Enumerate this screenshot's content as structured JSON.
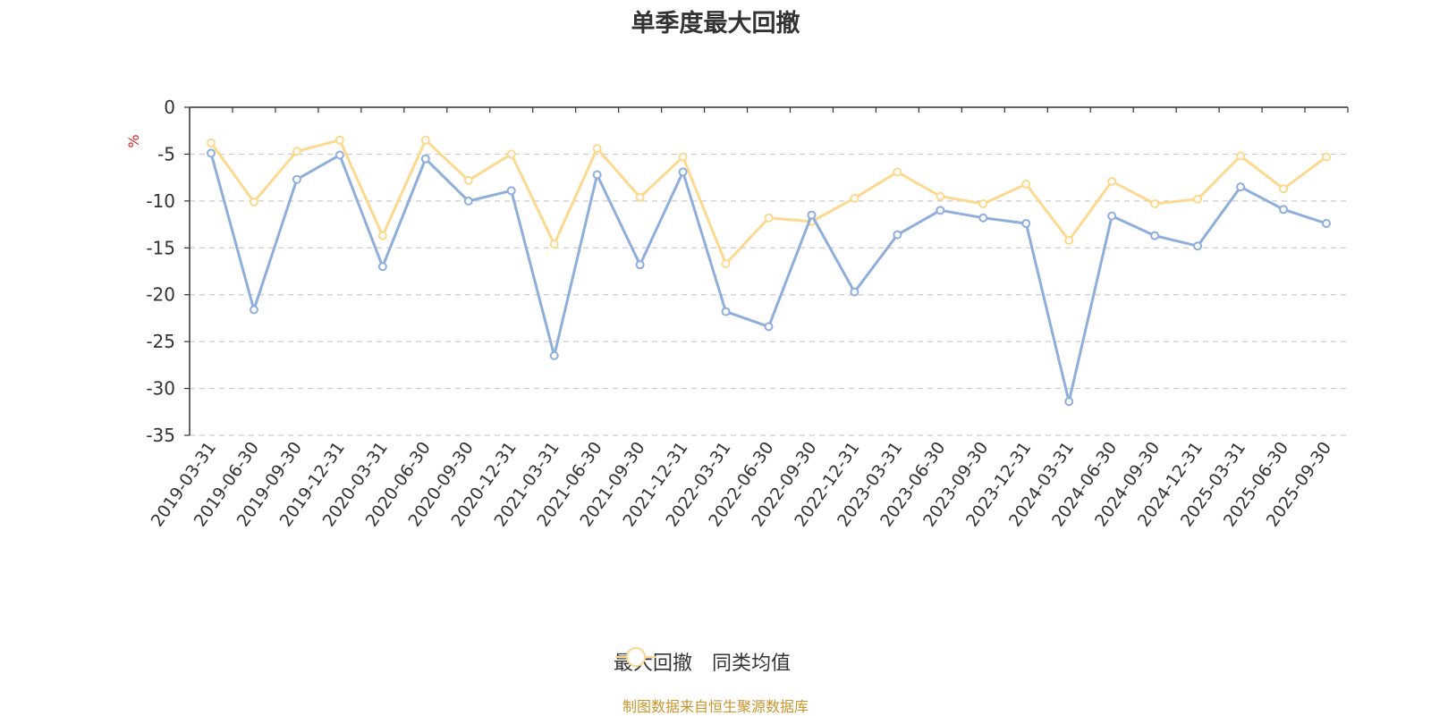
{
  "chart_data": {
    "type": "line",
    "title": "单季度最大回撤",
    "ylabel": "%",
    "ylim": [
      -35,
      0
    ],
    "yticks": [
      0,
      -5,
      -10,
      -15,
      -20,
      -25,
      -30,
      -35
    ],
    "grid": true,
    "legend_position": "bottom",
    "categories": [
      "2019-03-31",
      "2019-06-30",
      "2019-09-30",
      "2019-12-31",
      "2020-03-31",
      "2020-06-30",
      "2020-09-30",
      "2020-12-31",
      "2021-03-31",
      "2021-06-30",
      "2021-09-30",
      "2021-12-31",
      "2022-03-31",
      "2022-06-30",
      "2022-09-30",
      "2022-12-31",
      "2023-03-31",
      "2023-06-30",
      "2023-09-30",
      "2023-12-31",
      "2024-03-31",
      "2024-06-30",
      "2024-09-30",
      "2024-12-31",
      "2025-03-31",
      "2025-06-30",
      "2025-09-30"
    ],
    "series": [
      {
        "name": "最大回撤",
        "color": "#8eaedb",
        "values": [
          -4.9,
          -21.6,
          -7.7,
          -5.1,
          -17.0,
          -5.5,
          -10.0,
          -8.9,
          -26.5,
          -7.2,
          -16.8,
          -6.9,
          -21.8,
          -23.4,
          -11.5,
          -19.7,
          -13.6,
          -11.0,
          -11.8,
          -12.4,
          -31.4,
          -11.6,
          -13.7,
          -14.8,
          -8.5,
          -10.9,
          -12.4
        ]
      },
      {
        "name": "同类均值",
        "color": "#fcd98f",
        "values": [
          -3.8,
          -10.1,
          -4.7,
          -3.5,
          -13.7,
          -3.5,
          -7.8,
          -5.0,
          -14.6,
          -4.4,
          -9.6,
          -5.3,
          -16.7,
          -11.8,
          -12.2,
          -9.7,
          -6.9,
          -9.5,
          -10.3,
          -8.2,
          -14.2,
          -7.9,
          -10.3,
          -9.8,
          -5.2,
          -8.7,
          -5.3
        ]
      }
    ]
  },
  "source_text": "制图数据来自恒生聚源数据库"
}
